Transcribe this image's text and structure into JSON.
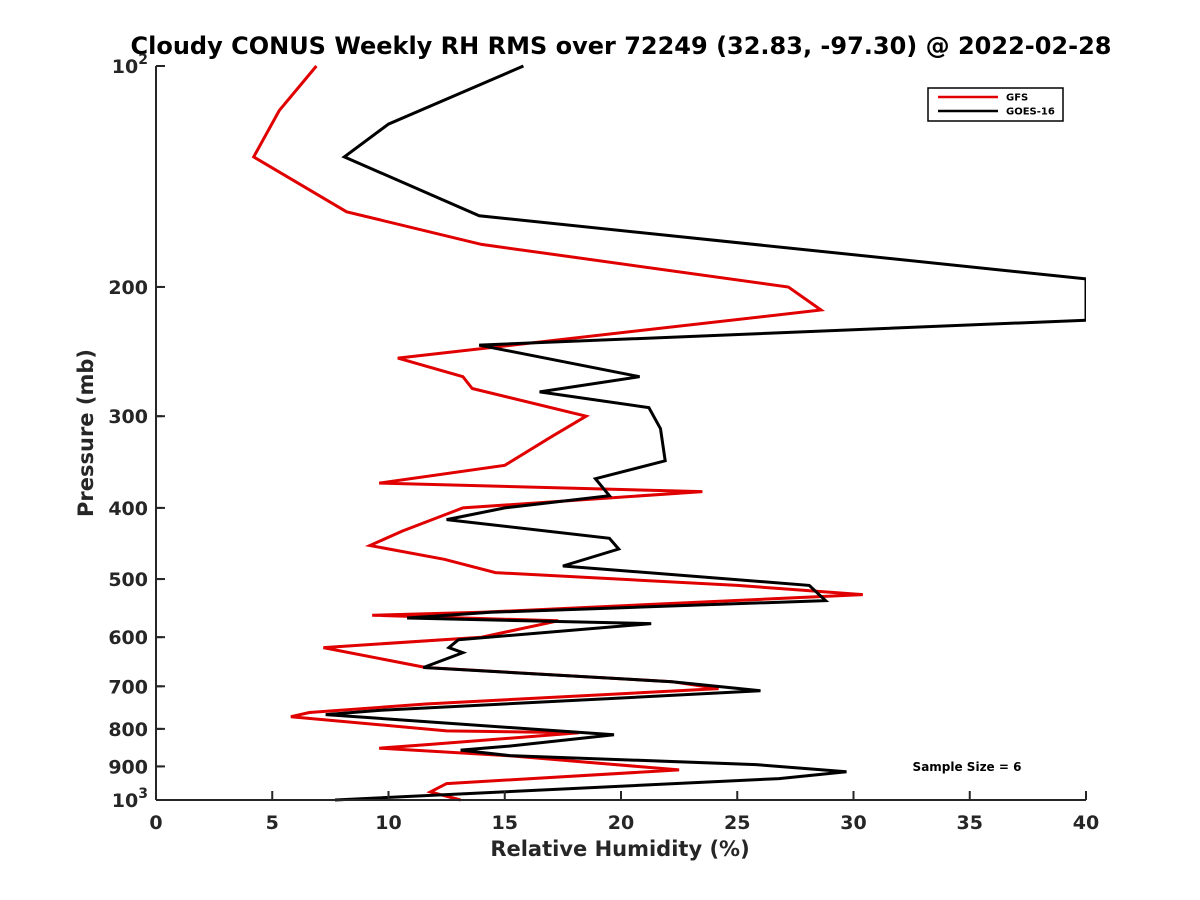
{
  "chart_data": {
    "type": "line",
    "title": "Cloudy CONUS Weekly RH RMS over 72249 (32.83, -97.30) @ 2022-02-28",
    "xlabel": "Relative Humidity (%)",
    "ylabel": "Pressure (mb)",
    "xlim": [
      0,
      40
    ],
    "ylim": [
      100,
      1000
    ],
    "y_scale": "log",
    "y_reversed": true,
    "grid": false,
    "legend_position": "top-right",
    "annotation": "Sample Size = 6",
    "x_ticks": [
      {
        "value": 0,
        "label": "0"
      },
      {
        "value": 5,
        "label": "5"
      },
      {
        "value": 10,
        "label": "10"
      },
      {
        "value": 15,
        "label": "15"
      },
      {
        "value": 20,
        "label": "20"
      },
      {
        "value": 25,
        "label": "25"
      },
      {
        "value": 30,
        "label": "30"
      },
      {
        "value": 35,
        "label": "35"
      },
      {
        "value": 40,
        "label": "40"
      }
    ],
    "y_ticks": [
      {
        "value": 100,
        "label": "10",
        "sup": "2"
      },
      {
        "value": 200,
        "label": "200"
      },
      {
        "value": 300,
        "label": "300"
      },
      {
        "value": 400,
        "label": "400"
      },
      {
        "value": 500,
        "label": "500"
      },
      {
        "value": 600,
        "label": "600"
      },
      {
        "value": 700,
        "label": "700"
      },
      {
        "value": 800,
        "label": "800"
      },
      {
        "value": 900,
        "label": "900"
      },
      {
        "value": 1000,
        "label": "10",
        "sup": "3"
      }
    ],
    "series": [
      {
        "name": "GFS",
        "color": "#e00000",
        "points": [
          [
            6.9,
            100
          ],
          [
            5.3,
            115
          ],
          [
            4.2,
            133
          ],
          [
            8.2,
            158
          ],
          [
            14.0,
            175
          ],
          [
            27.2,
            200
          ],
          [
            28.6,
            215
          ],
          [
            10.4,
            250
          ],
          [
            13.2,
            265
          ],
          [
            13.6,
            275
          ],
          [
            18.5,
            300
          ],
          [
            17.0,
            320
          ],
          [
            15.0,
            350
          ],
          [
            9.6,
            370
          ],
          [
            23.5,
            380
          ],
          [
            13.2,
            400
          ],
          [
            10.6,
            430
          ],
          [
            9.2,
            450
          ],
          [
            12.4,
            470
          ],
          [
            14.6,
            490
          ],
          [
            25.0,
            510
          ],
          [
            30.4,
            525
          ],
          [
            14.0,
            555
          ],
          [
            9.3,
            560
          ],
          [
            17.3,
            570
          ],
          [
            14.0,
            600
          ],
          [
            7.2,
            620
          ],
          [
            11.6,
            660
          ],
          [
            22.2,
            690
          ],
          [
            24.2,
            705
          ],
          [
            11.6,
            740
          ],
          [
            6.6,
            760
          ],
          [
            5.8,
            770
          ],
          [
            12.5,
            805
          ],
          [
            18.2,
            810
          ],
          [
            11.8,
            840
          ],
          [
            9.6,
            850
          ],
          [
            15.1,
            870
          ],
          [
            22.5,
            910
          ],
          [
            12.5,
            950
          ],
          [
            11.8,
            975
          ],
          [
            13.1,
            1000
          ]
        ]
      },
      {
        "name": "GOES-16",
        "color": "#000000",
        "points": [
          [
            15.8,
            100
          ],
          [
            10.0,
            120
          ],
          [
            8.1,
            133
          ],
          [
            13.9,
            160
          ],
          [
            40.0,
            195
          ],
          [
            40.0,
            222
          ],
          [
            13.9,
            240
          ],
          [
            20.8,
            265
          ],
          [
            16.5,
            278
          ],
          [
            21.2,
            292
          ],
          [
            21.7,
            312
          ],
          [
            21.9,
            345
          ],
          [
            18.9,
            365
          ],
          [
            19.5,
            385
          ],
          [
            15.0,
            400
          ],
          [
            12.5,
            415
          ],
          [
            19.5,
            440
          ],
          [
            19.9,
            455
          ],
          [
            17.5,
            480
          ],
          [
            28.1,
            510
          ],
          [
            28.8,
            535
          ],
          [
            14.4,
            555
          ],
          [
            10.8,
            565
          ],
          [
            21.3,
            575
          ],
          [
            13.0,
            605
          ],
          [
            12.6,
            620
          ],
          [
            13.2,
            630
          ],
          [
            11.5,
            660
          ],
          [
            22.2,
            690
          ],
          [
            26.0,
            710
          ],
          [
            9.6,
            755
          ],
          [
            7.3,
            765
          ],
          [
            19.7,
            815
          ],
          [
            15.1,
            845
          ],
          [
            13.1,
            855
          ],
          [
            15.2,
            870
          ],
          [
            25.8,
            895
          ],
          [
            29.7,
            915
          ],
          [
            26.8,
            935
          ],
          [
            7.7,
            1000
          ]
        ]
      }
    ]
  }
}
